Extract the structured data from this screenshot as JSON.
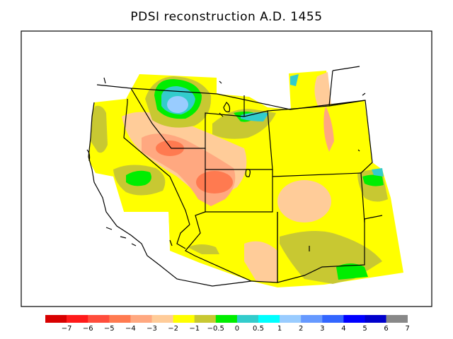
{
  "title": "PDSI reconstruction A.D. 1455",
  "legend": {
    "colors": [
      "#d80000",
      "#ff1a1a",
      "#ff4d3c",
      "#ff7a50",
      "#ffa880",
      "#ffcc99",
      "#ffff00",
      "#c8c832",
      "#00ee00",
      "#33cccc",
      "#00ffff",
      "#99ccff",
      "#6699ff",
      "#3366ff",
      "#0000ff",
      "#0000cc",
      "#888888"
    ],
    "ticks": [
      "−7",
      "−6",
      "−5",
      "−4",
      "−3",
      "−2",
      "−1",
      "−0.5",
      "0",
      "0.5",
      "1",
      "2",
      "3",
      "4",
      "5",
      "6",
      "7"
    ]
  }
}
